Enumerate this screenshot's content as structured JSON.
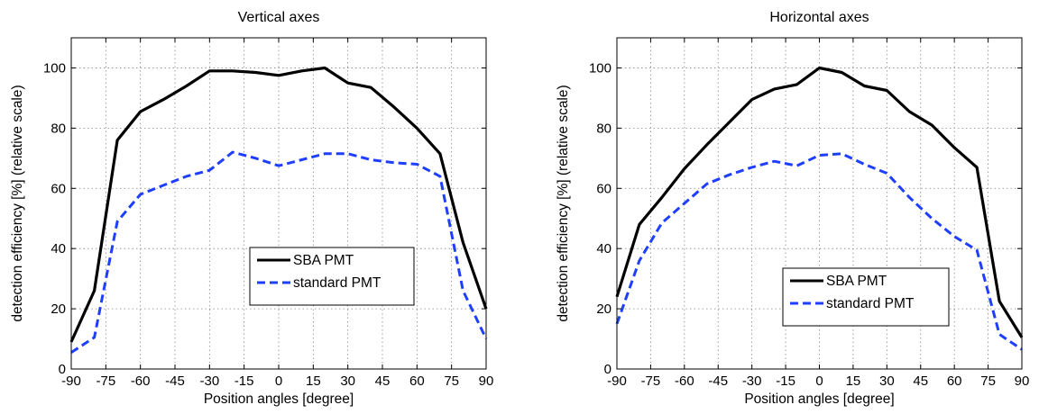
{
  "chart_data": [
    {
      "type": "line",
      "title": "Vertical axes",
      "xlabel": "Position angles [degree]",
      "ylabel": "detection efficiency [%] (relative scale)",
      "xlim": [
        -90,
        90
      ],
      "ylim": [
        0,
        110
      ],
      "xticks": [
        -90,
        -75,
        -60,
        -45,
        -30,
        -15,
        0,
        15,
        30,
        45,
        60,
        75,
        90
      ],
      "yticks": [
        0,
        20,
        40,
        60,
        80,
        100
      ],
      "grid": true,
      "legend_position": "center-lower",
      "series": [
        {
          "name": "SBA PMT",
          "color": "#000000",
          "style": "solid",
          "x": [
            -90,
            -80,
            -70,
            -60,
            -50,
            -40,
            -30,
            -20,
            -10,
            0,
            10,
            20,
            30,
            40,
            50,
            60,
            70,
            80,
            90
          ],
          "y": [
            9,
            26,
            76,
            85.5,
            89.5,
            94,
            99,
            99,
            98.5,
            97.5,
            99,
            100,
            95,
            93.5,
            87,
            80,
            71.5,
            42,
            20
          ]
        },
        {
          "name": "standard PMT",
          "color": "#1f3fff",
          "style": "dashed",
          "x": [
            -90,
            -80,
            -70,
            -60,
            -50,
            -40,
            -30,
            -20,
            -10,
            0,
            10,
            20,
            30,
            40,
            50,
            60,
            70,
            80,
            90
          ],
          "y": [
            5.5,
            10.5,
            49,
            58,
            61,
            64,
            66,
            72,
            70,
            67.5,
            69.5,
            71.5,
            71.5,
            69.5,
            68.5,
            68,
            64,
            26,
            10
          ]
        }
      ]
    },
    {
      "type": "line",
      "title": "Horizontal axes",
      "xlabel": "Position angles [degree]",
      "ylabel": "detection efficiency [%] (relative scale)",
      "xlim": [
        -90,
        90
      ],
      "ylim": [
        0,
        110
      ],
      "xticks": [
        -90,
        -75,
        -60,
        -45,
        -30,
        -15,
        0,
        15,
        30,
        45,
        60,
        75,
        90
      ],
      "yticks": [
        0,
        20,
        40,
        60,
        80,
        100
      ],
      "grid": true,
      "legend_position": "lower-right",
      "series": [
        {
          "name": "SBA PMT",
          "color": "#000000",
          "style": "solid",
          "x": [
            -90,
            -80,
            -70,
            -60,
            -50,
            -40,
            -30,
            -20,
            -10,
            0,
            10,
            20,
            30,
            40,
            50,
            60,
            70,
            80,
            90
          ],
          "y": [
            24,
            48,
            57,
            66.5,
            74.5,
            82,
            89.5,
            93,
            94.5,
            100,
            98.5,
            94,
            92.5,
            85.5,
            81,
            73.5,
            67,
            22.5,
            10.5
          ]
        },
        {
          "name": "standard PMT",
          "color": "#1f3fff",
          "style": "dashed",
          "x": [
            -90,
            -80,
            -70,
            -60,
            -50,
            -40,
            -30,
            -20,
            -10,
            0,
            10,
            20,
            30,
            40,
            50,
            60,
            70,
            80,
            90
          ],
          "y": [
            15,
            36,
            48.5,
            55,
            61.5,
            64.5,
            67,
            69,
            67.5,
            71,
            71.5,
            68,
            65,
            57,
            50,
            44,
            39.5,
            11.5,
            6.5
          ]
        }
      ]
    }
  ]
}
